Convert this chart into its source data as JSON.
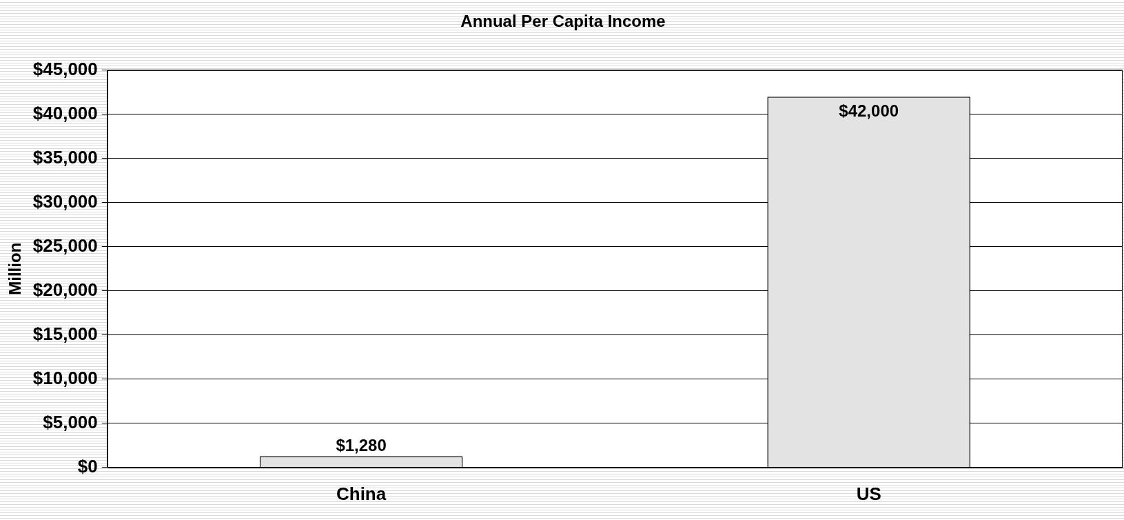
{
  "chart_data": {
    "type": "bar",
    "title": "Annual Per Capita Income",
    "ylabel": "Million",
    "categories": [
      "China",
      "US"
    ],
    "values": [
      1280,
      42000
    ],
    "color": "#e3e3e3",
    "value_labels": [
      "$1,280",
      "$42,000"
    ],
    "ylim": [
      0,
      45000
    ],
    "yticks": [
      {
        "value": 0,
        "label": "$0"
      },
      {
        "value": 5000,
        "label": "$5,000"
      },
      {
        "value": 10000,
        "label": "$10,000"
      },
      {
        "value": 15000,
        "label": "$15,000"
      },
      {
        "value": 20000,
        "label": "$20,000"
      },
      {
        "value": 25000,
        "label": "$25,000"
      },
      {
        "value": 30000,
        "label": "$30,000"
      },
      {
        "value": 35000,
        "label": "$35,000"
      },
      {
        "value": 40000,
        "label": "$40,000"
      },
      {
        "value": 45000,
        "label": "$45,000"
      }
    ],
    "grid": "y",
    "legend": false
  }
}
